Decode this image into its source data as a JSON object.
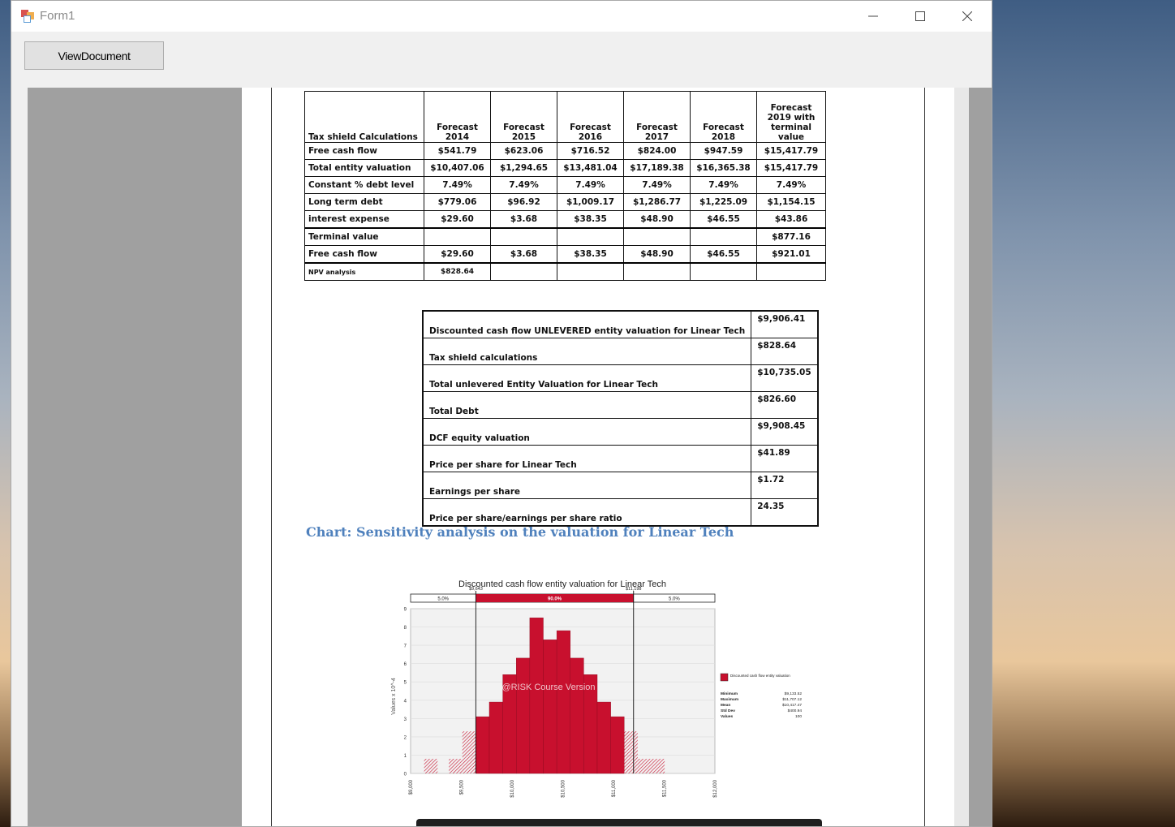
{
  "window": {
    "title": "Form1",
    "button_label": "ViewDocument",
    "controls": [
      "minimize-icon",
      "maximize-icon",
      "close-icon"
    ]
  },
  "table1": {
    "headers": [
      "Tax shield Calculations",
      "Forecast\n2014",
      "Forecast\n2015",
      "Forecast\n2016",
      "Forecast\n2017",
      "Forecast\n2018",
      "Forecast\n2019 with\nterminal\nvalue"
    ],
    "rows": [
      [
        "Free cash flow",
        "$541.79",
        "$623.06",
        "$716.52",
        "$824.00",
        "$947.59",
        "$15,417.79"
      ],
      [
        "Total entity valuation",
        "$10,407.06",
        "$1,294.65",
        "$13,481.04",
        "$17,189.38",
        "$16,365.38",
        "$15,417.79"
      ],
      [
        "Constant % debt level",
        "7.49%",
        "7.49%",
        "7.49%",
        "7.49%",
        "7.49%",
        "7.49%"
      ],
      [
        "Long term debt",
        "$779.06",
        "$96.92",
        "$1,009.17",
        "$1,286.77",
        "$1,225.09",
        "$1,154.15"
      ],
      [
        "interest expense",
        "$29.60",
        "$3.68",
        "$38.35",
        "$48.90",
        "$46.55",
        "$43.86"
      ],
      [
        "Terminal value",
        "",
        "",
        "",
        "",
        "",
        "$877.16"
      ],
      [
        "Free cash flow",
        "$29.60",
        "$3.68",
        "$38.35",
        "$48.90",
        "$46.55",
        "$921.01"
      ],
      [
        "NPV analysis",
        "$828.64",
        "",
        "",
        "",
        "",
        ""
      ]
    ]
  },
  "table2": {
    "rows": [
      [
        "Discounted cash flow UNLEVERED entity valuation for Linear Tech",
        "$9,906.41"
      ],
      [
        "Tax shield calculations",
        "$828.64"
      ],
      [
        "Total unlevered Entity Valuation for Linear Tech",
        "$10,735.05"
      ],
      [
        "Total Debt",
        "$826.60"
      ],
      [
        "DCF equity valuation",
        "$9,908.45"
      ],
      [
        "Price per share for Linear Tech",
        "$41.89"
      ],
      [
        "Earnings per share",
        "$1.72"
      ],
      [
        "Price per share/earnings per share ratio",
        "24.35"
      ]
    ]
  },
  "heading": "Chart: Sensitivity analysis on the valuation for Linear Tech",
  "chart_data": {
    "type": "bar",
    "title": "Discounted cash flow entity valuation for Linear Tech",
    "ylabel": "Values x 10^-4",
    "watermark": "@RISK Course Version",
    "xlim": [
      9000,
      12000
    ],
    "ylim": [
      0,
      9
    ],
    "x_ticks": [
      "$9,000",
      "$9,500",
      "$10,000",
      "$10,500",
      "$11,000",
      "$11,500",
      "$12,000"
    ],
    "y_ticks": [
      "0",
      "1",
      "2",
      "3",
      "4",
      "5",
      "6",
      "7",
      "8",
      "9"
    ],
    "markers": {
      "left": "$9,643",
      "right": "$11,198"
    },
    "bands": [
      {
        "label": "5.0%"
      },
      {
        "label": "90.0%"
      },
      {
        "label": "5.0%"
      }
    ],
    "bin_width": 133,
    "bins": [
      {
        "x": 9133,
        "y": 0.8,
        "tail": true
      },
      {
        "x": 9377,
        "y": 0.8,
        "tail": true
      },
      {
        "x": 9510,
        "y": 2.3,
        "tail": true
      },
      {
        "x": 9643,
        "y": 3.1
      },
      {
        "x": 9776,
        "y": 3.9
      },
      {
        "x": 9909,
        "y": 5.4
      },
      {
        "x": 10042,
        "y": 6.3
      },
      {
        "x": 10175,
        "y": 8.5
      },
      {
        "x": 10308,
        "y": 7.3
      },
      {
        "x": 10441,
        "y": 7.8
      },
      {
        "x": 10574,
        "y": 6.3
      },
      {
        "x": 10707,
        "y": 5.4
      },
      {
        "x": 10840,
        "y": 3.9
      },
      {
        "x": 10973,
        "y": 3.1
      },
      {
        "x": 11106,
        "y": 2.3,
        "tail": true
      },
      {
        "x": 11239,
        "y": 0.8,
        "tail": true
      },
      {
        "x": 11372,
        "y": 0.8,
        "tail": true
      }
    ],
    "legend": {
      "name": "Discounted cash flow entity valuation",
      "stats": [
        [
          "Minimum",
          "$9,133.52"
        ],
        [
          "Maximum",
          "$11,707.12"
        ],
        [
          "Mean",
          "$10,417.47"
        ],
        [
          "Std Dev",
          "$400.94"
        ],
        [
          "Values",
          "100"
        ]
      ]
    },
    "colors": {
      "bar": "#c8102e",
      "tail": "#c8102e"
    }
  }
}
